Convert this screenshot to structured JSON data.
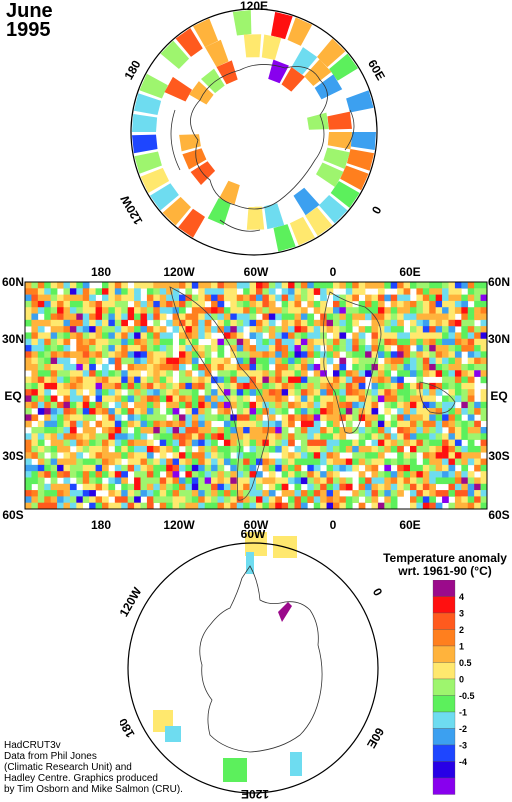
{
  "title": {
    "month": "June",
    "year": "1995"
  },
  "north_polar": {
    "labels": [
      "120E",
      "60E",
      "0",
      "120W",
      "180"
    ]
  },
  "global_map": {
    "top_axis": [
      "180",
      "120W",
      "60W",
      "0",
      "60E"
    ],
    "bottom_axis": [
      "180",
      "120W",
      "60W",
      "0",
      "60E"
    ],
    "lat_labels": [
      "60N",
      "30N",
      "EQ",
      "30S",
      "60S"
    ]
  },
  "south_polar": {
    "labels": [
      "60W",
      "0",
      "120W",
      "180",
      "60E",
      "120E"
    ]
  },
  "legend": {
    "title_line1": "Temperature anomaly",
    "title_line2": "wrt. 1961-90  (°C)",
    "levels": [
      "4",
      "3",
      "2",
      "1",
      "0.5",
      "0",
      "-0.5",
      "-1",
      "-2",
      "-3",
      "-4"
    ],
    "colors": [
      "#9b0a8b",
      "#ff1010",
      "#ff5a1e",
      "#ff7f1e",
      "#ffb33c",
      "#ffe86e",
      "#9ef56e",
      "#5cf05c",
      "#6edcf0",
      "#3ca0f0",
      "#1e46ff",
      "#2800e6",
      "#8800ee"
    ]
  },
  "credits": [
    "HadCRUT3v",
    "Data from Phil Jones",
    "(Climatic Research Unit) and",
    "Hadley Centre.  Graphics produced",
    "by Tim Osborn and Mike Salmon (CRU)."
  ]
}
